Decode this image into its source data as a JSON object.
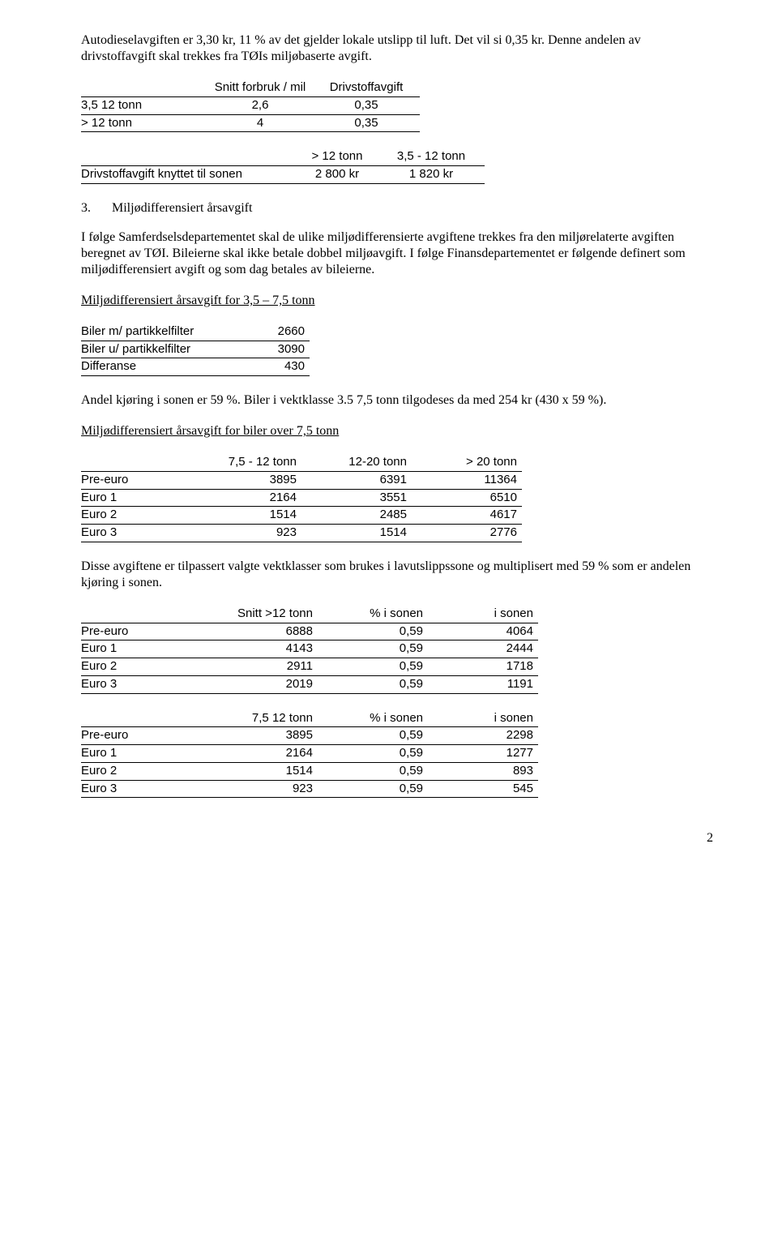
{
  "para1": "Autodieselavgiften er 3,30 kr, 11 % av det gjelder lokale utslipp til luft. Det vil si 0,35 kr. Denne andelen av drivstoffavgift skal trekkes fra TØIs miljøbaserte avgift.",
  "table1": {
    "headers": [
      "",
      "Snitt forbruk / mil",
      "Drivstoffavgift"
    ],
    "rows": [
      [
        "3,5 12 tonn",
        "2,6",
        "0,35"
      ],
      [
        "> 12 tonn",
        "4",
        "0,35"
      ]
    ]
  },
  "table2": {
    "headers": [
      "",
      "> 12 tonn",
      "3,5 - 12 tonn"
    ],
    "rows": [
      [
        "Drivstoffavgift knyttet til sonen",
        "2 800 kr",
        "1 820 kr"
      ]
    ]
  },
  "section3": {
    "num": "3.",
    "title": "Miljødifferensiert årsavgift"
  },
  "para2": "I følge Samferdselsdepartementet skal de ulike miljødifferensierte avgiftene trekkes fra den miljørelaterte avgiften beregnet av TØI. Bileierne skal ikke betale dobbel miljøavgift. I følge Finansdepartementet er følgende definert som miljødifferensiert avgift og som dag betales av bileierne.",
  "heading_a": "Miljødifferensiert årsavgift for 3,5 – 7,5 tonn",
  "table3": {
    "rows": [
      [
        "Biler m/ partikkelfilter",
        "2660"
      ],
      [
        "Biler u/ partikkelfilter",
        "3090"
      ],
      [
        "Differanse",
        "430"
      ]
    ]
  },
  "para3": "Andel kjøring i sonen er 59 %. Biler i vektklasse 3.5 7,5 tonn tilgodeses da med 254 kr (430 x 59 %).",
  "heading_b": "Miljødifferensiert årsavgift for biler over 7,5 tonn",
  "table4": {
    "headers": [
      "",
      "7,5 - 12 tonn",
      "12-20 tonn",
      "> 20 tonn"
    ],
    "rows": [
      [
        "Pre-euro",
        "3895",
        "6391",
        "11364"
      ],
      [
        "Euro 1",
        "2164",
        "3551",
        "6510"
      ],
      [
        "Euro 2",
        "1514",
        "2485",
        "4617"
      ],
      [
        "Euro 3",
        "923",
        "1514",
        "2776"
      ]
    ]
  },
  "para4": "Disse avgiftene er tilpassert valgte vektklasser som brukes i lavutslippssone og multiplisert med 59 % som er andelen kjøring i sonen.",
  "table5": {
    "headers": [
      "",
      "Snitt >12 tonn",
      "% i sonen",
      "i sonen"
    ],
    "rows": [
      [
        "Pre-euro",
        "6888",
        "0,59",
        "4064"
      ],
      [
        "Euro 1",
        "4143",
        "0,59",
        "2444"
      ],
      [
        "Euro 2",
        "2911",
        "0,59",
        "1718"
      ],
      [
        "Euro 3",
        "2019",
        "0,59",
        "1191"
      ]
    ]
  },
  "table6": {
    "headers": [
      "",
      "7,5 12 tonn",
      "% i sonen",
      "i sonen"
    ],
    "rows": [
      [
        "Pre-euro",
        "3895",
        "0,59",
        "2298"
      ],
      [
        "Euro 1",
        "2164",
        "0,59",
        "1277"
      ],
      [
        "Euro 2",
        "1514",
        "0,59",
        "893"
      ],
      [
        "Euro 3",
        "923",
        "0,59",
        "545"
      ]
    ]
  },
  "page_number": "2"
}
